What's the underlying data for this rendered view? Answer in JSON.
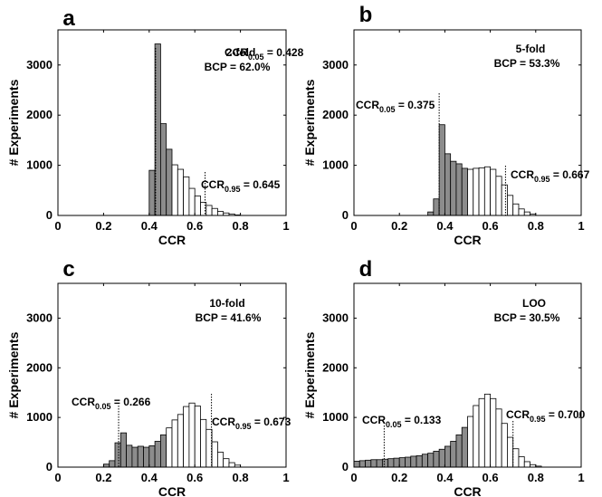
{
  "figure": {
    "colors": {
      "gray_bar": "#8c8c8c",
      "white_bar": "#ffffff",
      "stroke": "#000000",
      "background": "#ffffff"
    }
  },
  "chart_data": [
    {
      "type": "bar",
      "panel_label": "a",
      "title": "",
      "xlabel": "CCR",
      "ylabel": "# Experiments",
      "xlim": [
        0,
        1
      ],
      "ylim": [
        0,
        3700
      ],
      "xticks": [
        "0",
        "0.2",
        "0.4",
        "0.6",
        "0.8",
        "1"
      ],
      "yticks": [
        "0",
        "1000",
        "2000",
        "3000"
      ],
      "bin_width": 0.025,
      "bins": [
        {
          "x": 0.4,
          "value": 900,
          "shaded": true
        },
        {
          "x": 0.425,
          "value": 3420,
          "shaded": true
        },
        {
          "x": 0.45,
          "value": 1830,
          "shaded": true
        },
        {
          "x": 0.475,
          "value": 1320,
          "shaded": true
        },
        {
          "x": 0.5,
          "value": 1010,
          "shaded": false
        },
        {
          "x": 0.525,
          "value": 920,
          "shaded": false
        },
        {
          "x": 0.55,
          "value": 770,
          "shaded": false
        },
        {
          "x": 0.575,
          "value": 540,
          "shaded": false
        },
        {
          "x": 0.6,
          "value": 390,
          "shaded": false
        },
        {
          "x": 0.625,
          "value": 260,
          "shaded": false
        },
        {
          "x": 0.65,
          "value": 200,
          "shaded": false
        },
        {
          "x": 0.675,
          "value": 140,
          "shaded": false
        },
        {
          "x": 0.7,
          "value": 80,
          "shaded": false
        },
        {
          "x": 0.725,
          "value": 50,
          "shaded": false
        },
        {
          "x": 0.75,
          "value": 30,
          "shaded": false
        },
        {
          "x": 0.775,
          "value": 10,
          "shaded": false
        }
      ],
      "low_marker": {
        "x": 0.428,
        "label_main": "CCR",
        "label_sub": "0.05",
        "label_value": " = 0.428"
      },
      "high_marker": {
        "x": 0.645,
        "label_main": "CCR",
        "label_sub": "0.95",
        "label_value": " = 0.645"
      },
      "fold_label": "2-fold",
      "bcp_label": "BCP = 62.0%"
    },
    {
      "type": "bar",
      "panel_label": "b",
      "title": "",
      "xlabel": "CCR",
      "ylabel": "# Experiments",
      "xlim": [
        0,
        1
      ],
      "ylim": [
        0,
        3700
      ],
      "xticks": [
        "0",
        "0.2",
        "0.4",
        "0.6",
        "0.8",
        "1"
      ],
      "yticks": [
        "0",
        "1000",
        "2000",
        "3000"
      ],
      "bin_width": 0.025,
      "bins": [
        {
          "x": 0.325,
          "value": 70,
          "shaded": true
        },
        {
          "x": 0.35,
          "value": 330,
          "shaded": true
        },
        {
          "x": 0.375,
          "value": 1810,
          "shaded": true
        },
        {
          "x": 0.4,
          "value": 1230,
          "shaded": true
        },
        {
          "x": 0.425,
          "value": 1080,
          "shaded": true
        },
        {
          "x": 0.45,
          "value": 1030,
          "shaded": true
        },
        {
          "x": 0.475,
          "value": 940,
          "shaded": true
        },
        {
          "x": 0.5,
          "value": 920,
          "shaded": false
        },
        {
          "x": 0.525,
          "value": 940,
          "shaded": false
        },
        {
          "x": 0.55,
          "value": 950,
          "shaded": false
        },
        {
          "x": 0.575,
          "value": 970,
          "shaded": false
        },
        {
          "x": 0.6,
          "value": 920,
          "shaded": false
        },
        {
          "x": 0.625,
          "value": 780,
          "shaded": false
        },
        {
          "x": 0.65,
          "value": 610,
          "shaded": false
        },
        {
          "x": 0.675,
          "value": 400,
          "shaded": false
        },
        {
          "x": 0.7,
          "value": 230,
          "shaded": false
        },
        {
          "x": 0.725,
          "value": 130,
          "shaded": false
        },
        {
          "x": 0.75,
          "value": 70,
          "shaded": false
        },
        {
          "x": 0.775,
          "value": 30,
          "shaded": false
        }
      ],
      "low_marker": {
        "x": 0.375,
        "label_main": "CCR",
        "label_sub": "0.05",
        "label_value": " = 0.375"
      },
      "high_marker": {
        "x": 0.667,
        "label_main": "CCR",
        "label_sub": "0.95",
        "label_value": " = 0.667"
      },
      "fold_label": "5-fold",
      "bcp_label": "BCP = 53.3%"
    },
    {
      "type": "bar",
      "panel_label": "c",
      "title": "",
      "xlabel": "CCR",
      "ylabel": "# Experiments",
      "xlim": [
        0,
        1
      ],
      "ylim": [
        0,
        3700
      ],
      "xticks": [
        "0",
        "0.2",
        "0.4",
        "0.6",
        "0.8",
        "1"
      ],
      "yticks": [
        "0",
        "1000",
        "2000",
        "3000"
      ],
      "bin_width": 0.025,
      "bins": [
        {
          "x": 0.2,
          "value": 60,
          "shaded": true
        },
        {
          "x": 0.225,
          "value": 130,
          "shaded": true
        },
        {
          "x": 0.25,
          "value": 490,
          "shaded": true
        },
        {
          "x": 0.275,
          "value": 690,
          "shaded": true
        },
        {
          "x": 0.3,
          "value": 440,
          "shaded": true
        },
        {
          "x": 0.325,
          "value": 400,
          "shaded": true
        },
        {
          "x": 0.35,
          "value": 420,
          "shaded": true
        },
        {
          "x": 0.375,
          "value": 400,
          "shaded": true
        },
        {
          "x": 0.4,
          "value": 430,
          "shaded": true
        },
        {
          "x": 0.425,
          "value": 520,
          "shaded": true
        },
        {
          "x": 0.45,
          "value": 650,
          "shaded": true
        },
        {
          "x": 0.475,
          "value": 790,
          "shaded": false
        },
        {
          "x": 0.5,
          "value": 950,
          "shaded": false
        },
        {
          "x": 0.525,
          "value": 1060,
          "shaded": false
        },
        {
          "x": 0.55,
          "value": 1220,
          "shaded": false
        },
        {
          "x": 0.575,
          "value": 1290,
          "shaded": false
        },
        {
          "x": 0.6,
          "value": 1230,
          "shaded": false
        },
        {
          "x": 0.625,
          "value": 960,
          "shaded": false
        },
        {
          "x": 0.65,
          "value": 760,
          "shaded": false
        },
        {
          "x": 0.675,
          "value": 510,
          "shaded": false
        },
        {
          "x": 0.7,
          "value": 300,
          "shaded": false
        },
        {
          "x": 0.725,
          "value": 170,
          "shaded": false
        },
        {
          "x": 0.75,
          "value": 90,
          "shaded": false
        },
        {
          "x": 0.775,
          "value": 40,
          "shaded": false
        }
      ],
      "low_marker": {
        "x": 0.266,
        "label_main": "CCR",
        "label_sub": "0.05",
        "label_value": " = 0.266"
      },
      "high_marker": {
        "x": 0.673,
        "label_main": "CCR",
        "label_sub": "0.95",
        "label_value": " = 0.673"
      },
      "fold_label": "10-fold",
      "bcp_label": "BCP = 41.6%"
    },
    {
      "type": "bar",
      "panel_label": "d",
      "title": "",
      "xlabel": "CCR",
      "ylabel": "# Experiments",
      "xlim": [
        0,
        1
      ],
      "ylim": [
        0,
        3700
      ],
      "xticks": [
        "0",
        "0.2",
        "0.4",
        "0.6",
        "0.8",
        "1"
      ],
      "yticks": [
        "0",
        "1000",
        "2000",
        "3000"
      ],
      "bin_width": 0.025,
      "bins": [
        {
          "x": 0.0,
          "value": 120,
          "shaded": true
        },
        {
          "x": 0.025,
          "value": 130,
          "shaded": true
        },
        {
          "x": 0.05,
          "value": 140,
          "shaded": true
        },
        {
          "x": 0.075,
          "value": 150,
          "shaded": true
        },
        {
          "x": 0.1,
          "value": 150,
          "shaded": true
        },
        {
          "x": 0.125,
          "value": 160,
          "shaded": true
        },
        {
          "x": 0.15,
          "value": 170,
          "shaded": true
        },
        {
          "x": 0.175,
          "value": 180,
          "shaded": true
        },
        {
          "x": 0.2,
          "value": 190,
          "shaded": true
        },
        {
          "x": 0.225,
          "value": 200,
          "shaded": true
        },
        {
          "x": 0.25,
          "value": 220,
          "shaded": true
        },
        {
          "x": 0.275,
          "value": 230,
          "shaded": true
        },
        {
          "x": 0.3,
          "value": 260,
          "shaded": true
        },
        {
          "x": 0.325,
          "value": 280,
          "shaded": true
        },
        {
          "x": 0.35,
          "value": 320,
          "shaded": true
        },
        {
          "x": 0.375,
          "value": 360,
          "shaded": true
        },
        {
          "x": 0.4,
          "value": 420,
          "shaded": true
        },
        {
          "x": 0.425,
          "value": 520,
          "shaded": true
        },
        {
          "x": 0.45,
          "value": 650,
          "shaded": true
        },
        {
          "x": 0.475,
          "value": 800,
          "shaded": true
        },
        {
          "x": 0.5,
          "value": 1020,
          "shaded": false
        },
        {
          "x": 0.525,
          "value": 1240,
          "shaded": false
        },
        {
          "x": 0.55,
          "value": 1380,
          "shaded": false
        },
        {
          "x": 0.575,
          "value": 1470,
          "shaded": false
        },
        {
          "x": 0.6,
          "value": 1380,
          "shaded": false
        },
        {
          "x": 0.625,
          "value": 1170,
          "shaded": false
        },
        {
          "x": 0.65,
          "value": 880,
          "shaded": false
        },
        {
          "x": 0.675,
          "value": 600,
          "shaded": false
        },
        {
          "x": 0.7,
          "value": 370,
          "shaded": false
        },
        {
          "x": 0.725,
          "value": 210,
          "shaded": false
        },
        {
          "x": 0.75,
          "value": 110,
          "shaded": false
        },
        {
          "x": 0.775,
          "value": 50,
          "shaded": false
        },
        {
          "x": 0.8,
          "value": 20,
          "shaded": false
        }
      ],
      "low_marker": {
        "x": 0.133,
        "label_main": "CCR",
        "label_sub": "0.05",
        "label_value": " = 0.133"
      },
      "high_marker": {
        "x": 0.7,
        "label_main": "CCR",
        "label_sub": "0.95",
        "label_value": " = 0.700"
      },
      "fold_label": "LOO",
      "bcp_label": "BCP = 30.5%"
    }
  ]
}
